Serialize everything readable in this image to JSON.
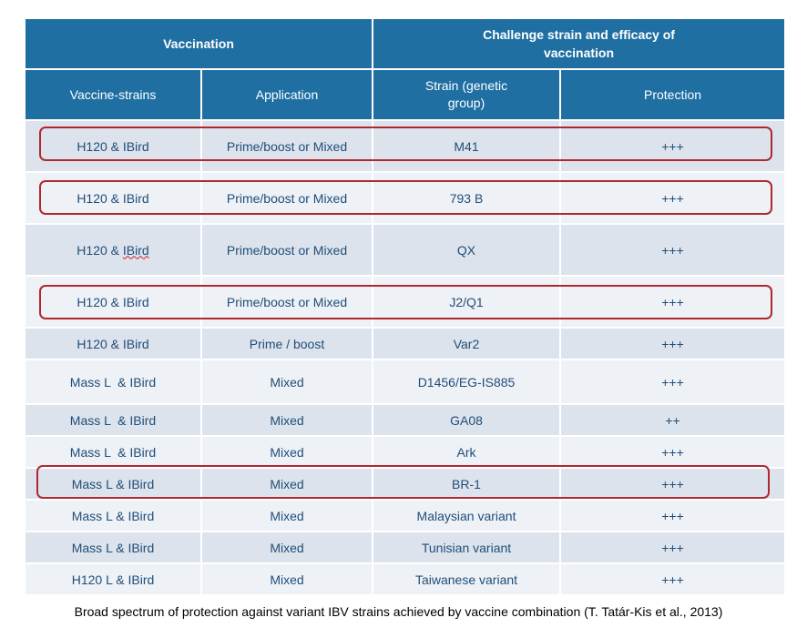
{
  "header": {
    "vaccination": "Vaccination",
    "challenge": "Challenge strain and efficacy of vaccination",
    "vaccine_strains": "Vaccine-strains",
    "application": "Application",
    "strain": "Strain (genetic group)",
    "protection": "Protection"
  },
  "rows": [
    {
      "vaccine": "H120 & IBird",
      "application": "Prime/boost or Mixed",
      "strain": "M41",
      "protection": "+++"
    },
    {
      "vaccine": "H120 & IBird",
      "application": "Prime/boost or Mixed",
      "strain": "793 B",
      "protection": "+++"
    },
    {
      "vaccine_prefix": "H120 & ",
      "vaccine_suffix": "IBird",
      "application": "Prime/boost or Mixed",
      "strain": "QX",
      "protection": "+++"
    },
    {
      "vaccine": "H120 & IBird",
      "application": "Prime/boost or Mixed",
      "strain": "J2/Q1",
      "protection": "+++"
    },
    {
      "vaccine": "H120 & IBird",
      "application": "Prime / boost",
      "strain": "Var2",
      "protection": "+++"
    },
    {
      "vaccine": "Mass L  & IBird",
      "application": "Mixed",
      "strain": "D1456/EG-IS885",
      "protection": "+++"
    },
    {
      "vaccine": "Mass L  & IBird",
      "application": "Mixed",
      "strain": "GA08",
      "protection": "++"
    },
    {
      "vaccine": "Mass L  & IBird",
      "application": "Mixed",
      "strain": "Ark",
      "protection": "+++"
    },
    {
      "vaccine": "Mass L & IBird",
      "application": "Mixed",
      "strain": "BR-1",
      "protection": "+++"
    },
    {
      "vaccine": "Mass L & IBird",
      "application": "Mixed",
      "strain": "Malaysian variant",
      "protection": "+++"
    },
    {
      "vaccine": "Mass L & IBird",
      "application": "Mixed",
      "strain": "Tunisian variant",
      "protection": "+++"
    },
    {
      "vaccine": "H120 L & IBird",
      "application": "Mixed",
      "strain": "Taiwanese variant",
      "protection": "+++"
    }
  ],
  "caption": "Broad spectrum of protection against variant IBV strains achieved by vaccine combination (T. Tatár-Kis et al., 2013)",
  "colors": {
    "header_bg": "#1f6fa3",
    "row_odd": "#dde3ec",
    "row_even": "#eef1f6",
    "text": "#1f4e79",
    "highlight": "#b0282f"
  }
}
